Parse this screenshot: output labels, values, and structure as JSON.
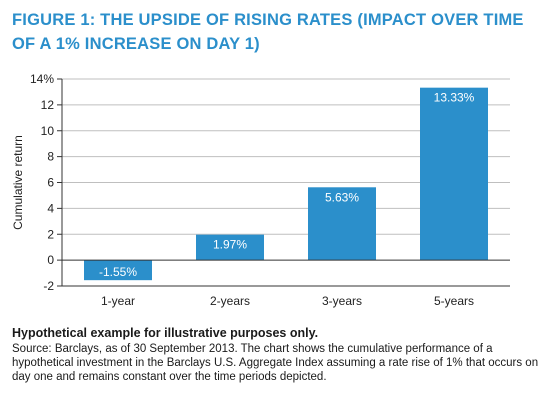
{
  "figure": {
    "title": "FIGURE 1: THE UPSIDE OF RISING RATES (IMPACT OVER TIME OF A 1% INCREASE ON DAY 1)",
    "note": "Hypothetical example for illustrative purposes only.",
    "source": "Source: Barclays, as of 30 September 2013. The chart shows the cumulative performance of a hypothetical investment in the Barclays U.S. Aggregate Index assuming a rate rise of 1% that occurs on day one and remains constant over the time periods depicted."
  },
  "colors": {
    "title": "#2b8fcb",
    "bar": "#2b8fcb",
    "bar_label": "#ffffff",
    "grid": "#bfbfbf",
    "axis": "#333333"
  },
  "chart_data": {
    "type": "bar",
    "categories": [
      "1-year",
      "2-years",
      "3-years",
      "5-years"
    ],
    "values": [
      -1.55,
      1.97,
      5.63,
      13.33
    ],
    "data_labels": [
      "-1.55%",
      "1.97%",
      "5.63%",
      "13.33%"
    ],
    "ylabel": "Cumulative return",
    "xlabel": "",
    "ylim": [
      -2,
      14
    ],
    "yticks": [
      -2,
      0,
      2,
      4,
      6,
      8,
      10,
      12,
      14
    ],
    "ytick_labels": [
      "-2",
      "0",
      "2",
      "4",
      "6",
      "8",
      "10",
      "12",
      "14%"
    ],
    "grid": true,
    "legend": "none"
  }
}
